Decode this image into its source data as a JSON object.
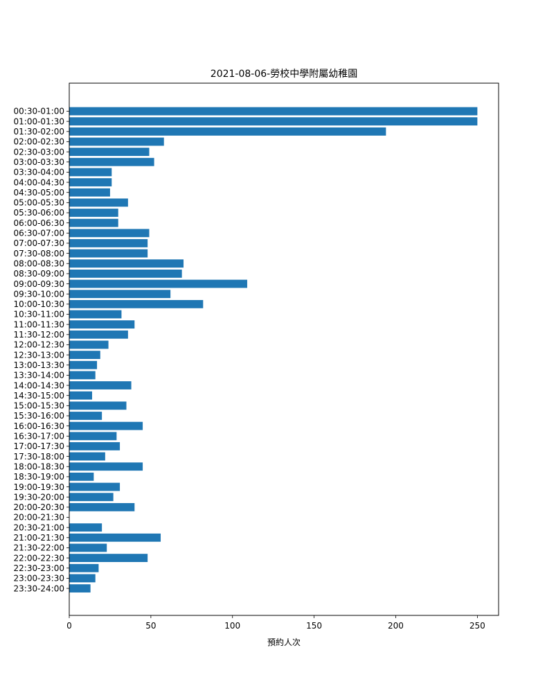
{
  "chart_data": {
    "type": "bar",
    "orientation": "horizontal",
    "title": "2021-08-06-勞校中學附屬幼稚園",
    "xlabel": "預約人次",
    "ylabel": "",
    "xlim": [
      0,
      263
    ],
    "xticks": [
      0,
      50,
      100,
      150,
      200,
      250
    ],
    "grid": false,
    "bar_color": "#1f77b4",
    "categories": [
      "00:30-01:00",
      "01:00-01:30",
      "01:30-02:00",
      "02:00-02:30",
      "02:30-03:00",
      "03:00-03:30",
      "03:30-04:00",
      "04:00-04:30",
      "04:30-05:00",
      "05:00-05:30",
      "05:30-06:00",
      "06:00-06:30",
      "06:30-07:00",
      "07:00-07:30",
      "07:30-08:00",
      "08:00-08:30",
      "08:30-09:00",
      "09:00-09:30",
      "09:30-10:00",
      "10:00-10:30",
      "10:30-11:00",
      "11:00-11:30",
      "11:30-12:00",
      "12:00-12:30",
      "12:30-13:00",
      "13:00-13:30",
      "13:30-14:00",
      "14:00-14:30",
      "14:30-15:00",
      "15:00-15:30",
      "15:30-16:00",
      "16:00-16:30",
      "16:30-17:00",
      "17:00-17:30",
      "17:30-18:00",
      "18:00-18:30",
      "18:30-19:00",
      "19:00-19:30",
      "19:30-20:00",
      "20:00-20:30",
      "20:00-21:30",
      "20:30-21:00",
      "21:00-21:30",
      "21:30-22:00",
      "22:00-22:30",
      "22:30-23:00",
      "23:00-23:30",
      "23:30-24:00"
    ],
    "values": [
      250,
      250,
      194,
      58,
      49,
      52,
      26,
      26,
      25,
      36,
      30,
      30,
      49,
      48,
      48,
      70,
      69,
      109,
      62,
      82,
      32,
      40,
      36,
      24,
      19,
      17,
      16,
      38,
      14,
      35,
      20,
      45,
      29,
      31,
      22,
      45,
      15,
      31,
      27,
      40,
      0,
      20,
      56,
      23,
      48,
      18,
      16,
      13
    ]
  }
}
